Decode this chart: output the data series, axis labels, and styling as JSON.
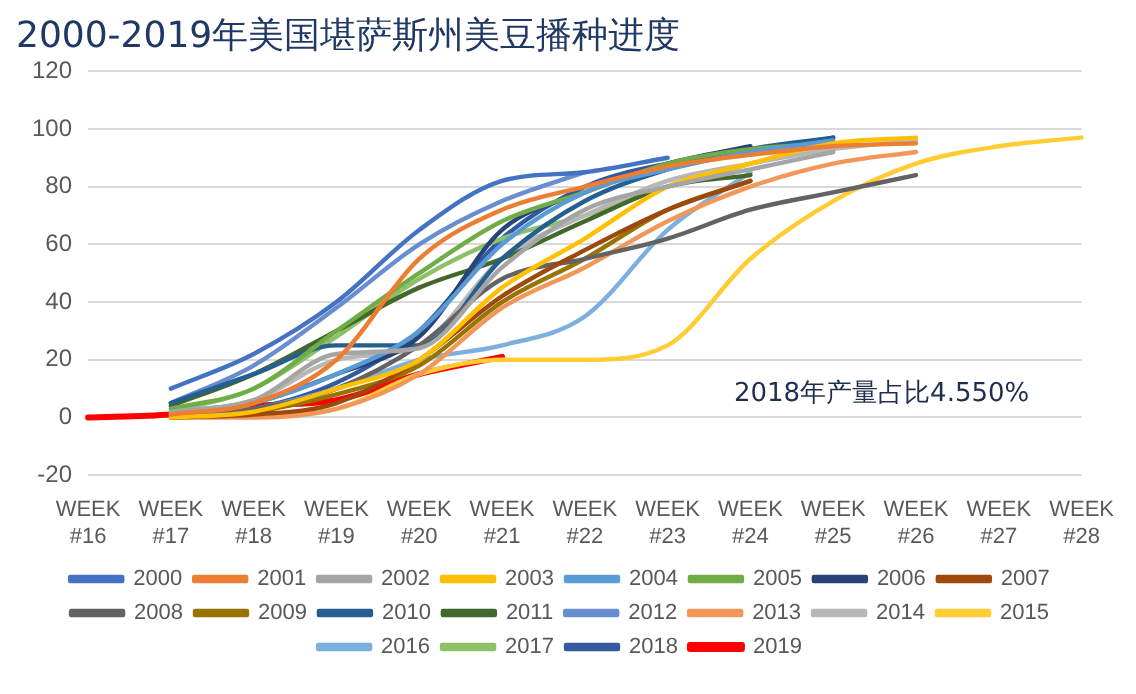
{
  "chart_data": {
    "type": "line",
    "title": "2000-2019年美国堪萨斯州美豆播种进度",
    "categories": [
      "WEEK #16",
      "WEEK #17",
      "WEEK #18",
      "WEEK #19",
      "WEEK #20",
      "WEEK #21",
      "WEEK #22",
      "WEEK #23",
      "WEEK #24",
      "WEEK #25",
      "WEEK #26",
      "WEEK #27",
      "WEEK #28"
    ],
    "series": [
      {
        "name": "2000",
        "color": "#4472c4",
        "values": [
          null,
          10,
          22,
          40,
          65,
          82,
          85,
          90,
          null,
          null,
          null,
          null,
          null
        ]
      },
      {
        "name": "2001",
        "color": "#ed7d31",
        "values": [
          null,
          1,
          5,
          20,
          55,
          72,
          80,
          87,
          91,
          94,
          95,
          null,
          null
        ]
      },
      {
        "name": "2002",
        "color": "#a5a5a5",
        "values": [
          null,
          2,
          6,
          22,
          24,
          52,
          72,
          80,
          86,
          92,
          null,
          null,
          null
        ]
      },
      {
        "name": "2003",
        "color": "#ffc000",
        "values": [
          null,
          0,
          2,
          10,
          20,
          45,
          62,
          80,
          88,
          95,
          97,
          null,
          null
        ]
      },
      {
        "name": "2004",
        "color": "#5b9bd5",
        "values": [
          null,
          1,
          5,
          15,
          30,
          60,
          78,
          86,
          92,
          96,
          null,
          null,
          null
        ]
      },
      {
        "name": "2005",
        "color": "#70ad47",
        "values": [
          null,
          3,
          10,
          30,
          50,
          68,
          78,
          88,
          93,
          95,
          null,
          null,
          null
        ]
      },
      {
        "name": "2006",
        "color": "#264478",
        "values": [
          null,
          1,
          5,
          15,
          28,
          65,
          78,
          88,
          94,
          null,
          null,
          null,
          null
        ]
      },
      {
        "name": "2007",
        "color": "#9e480e",
        "values": [
          null,
          0,
          1,
          5,
          20,
          42,
          58,
          72,
          82,
          null,
          null,
          null,
          null
        ]
      },
      {
        "name": "2008",
        "color": "#636363",
        "values": [
          null,
          1,
          3,
          10,
          25,
          48,
          55,
          62,
          72,
          78,
          84,
          null,
          null
        ]
      },
      {
        "name": "2009",
        "color": "#997300",
        "values": [
          null,
          0,
          2,
          8,
          18,
          40,
          55,
          72,
          82,
          null,
          null,
          null,
          null
        ]
      },
      {
        "name": "2010",
        "color": "#255e91",
        "values": [
          null,
          5,
          15,
          25,
          25,
          55,
          75,
          86,
          93,
          97,
          null,
          null,
          null
        ]
      },
      {
        "name": "2011",
        "color": "#43682b",
        "values": [
          null,
          4,
          15,
          30,
          45,
          55,
          68,
          80,
          84,
          null,
          null,
          null,
          null
        ]
      },
      {
        "name": "2012",
        "color": "#698ed0",
        "values": [
          null,
          5,
          18,
          38,
          60,
          75,
          85,
          null,
          null,
          null,
          null,
          null,
          null
        ]
      },
      {
        "name": "2013",
        "color": "#f1975a",
        "values": [
          null,
          0,
          0,
          3,
          15,
          38,
          52,
          68,
          80,
          88,
          92,
          null,
          null
        ]
      },
      {
        "name": "2014",
        "color": "#b7b7b7",
        "values": [
          null,
          2,
          6,
          20,
          25,
          55,
          70,
          82,
          88,
          93,
          96,
          null,
          null
        ]
      },
      {
        "name": "2015",
        "color": "#ffcd33",
        "values": [
          null,
          0,
          1,
          3,
          15,
          20,
          20,
          25,
          55,
          75,
          88,
          94,
          97
        ]
      },
      {
        "name": "2016",
        "color": "#7cafdd",
        "values": [
          null,
          1,
          3,
          10,
          20,
          25,
          35,
          65,
          85,
          null,
          null,
          null,
          null
        ]
      },
      {
        "name": "2017",
        "color": "#8cc168",
        "values": [
          null,
          2,
          10,
          28,
          48,
          62,
          70,
          80,
          88,
          null,
          null,
          null,
          null
        ]
      },
      {
        "name": "2018",
        "color": "#335aa1",
        "values": [
          null,
          0,
          3,
          12,
          30,
          62,
          80,
          88,
          92,
          97,
          null,
          null,
          null
        ]
      },
      {
        "name": "2019",
        "color": "#ff0000",
        "values": [
          0,
          1,
          4,
          6,
          15,
          21,
          null,
          null,
          null,
          null,
          null,
          null,
          null
        ]
      }
    ],
    "ylim": [
      -20,
      120
    ],
    "yticks": [
      -20,
      0,
      20,
      40,
      60,
      80,
      100,
      120
    ],
    "grid": "y",
    "legend": "bottom",
    "marker": "none",
    "line_style": "solid",
    "annotations": [
      "2018年产量占比4.550%"
    ]
  }
}
